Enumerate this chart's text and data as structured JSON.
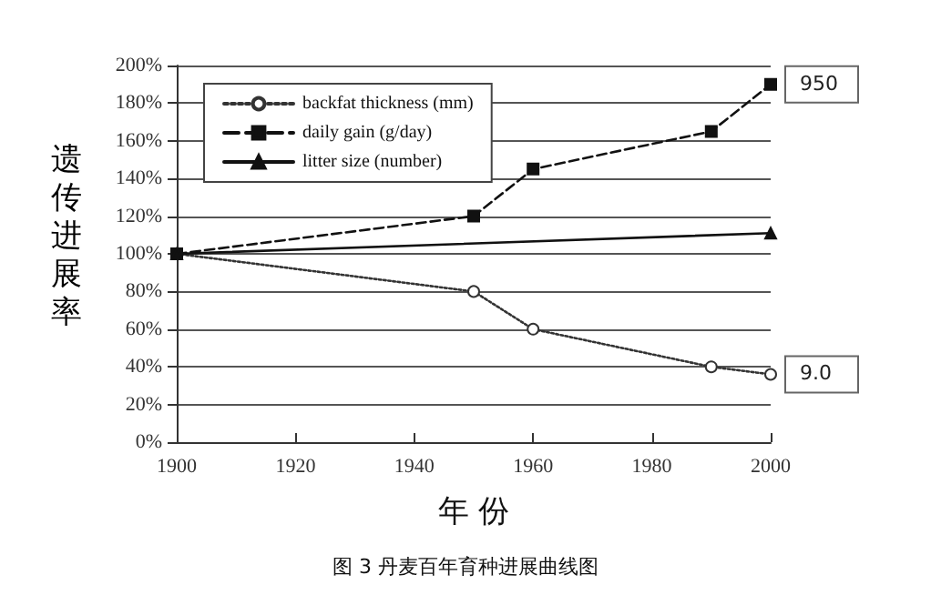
{
  "chart_data": {
    "type": "line",
    "xlabel": "年 份",
    "ylabel": "遗传进展率",
    "series": [
      {
        "name": "backfat thickness (mm)",
        "color": "#333333",
        "x": [
          1900,
          1950,
          1960,
          1990,
          2000
        ],
        "values": [
          100,
          80,
          60,
          40,
          36
        ],
        "marker": "circle",
        "line_style": "dotted"
      },
      {
        "name": "daily gain (g/day)",
        "color": "#111111",
        "x": [
          1900,
          1950,
          1960,
          1990,
          2000
        ],
        "values": [
          100,
          120,
          145,
          165,
          190
        ],
        "marker": "square",
        "line_style": "dashed"
      },
      {
        "name": "litter size (number)",
        "color": "#111111",
        "x": [
          1900,
          2000
        ],
        "values": [
          100,
          111
        ],
        "marker": "triangle",
        "line_style": "solid"
      }
    ],
    "xlim": [
      1900,
      2000
    ],
    "xticks": [
      1900,
      1920,
      1940,
      1960,
      1980,
      2000
    ],
    "ylim": [
      0,
      200
    ],
    "yticks": [
      {
        "value": 0,
        "label": "0%"
      },
      {
        "value": 20,
        "label": "20%"
      },
      {
        "value": 40,
        "label": "40%"
      },
      {
        "value": 60,
        "label": "60%"
      },
      {
        "value": 80,
        "label": "80%"
      },
      {
        "value": 100,
        "label": "100%"
      },
      {
        "value": 120,
        "label": "120%"
      },
      {
        "value": 140,
        "label": "140%"
      },
      {
        "value": 160,
        "label": "160%"
      },
      {
        "value": 180,
        "label": "180%"
      },
      {
        "value": 200,
        "label": "200%"
      }
    ],
    "grid": "y",
    "legend": "top left",
    "annotations": [
      {
        "text": "950",
        "x": 2000,
        "y": 190
      },
      {
        "text": "9.0",
        "x": 2000,
        "y": 36
      },
      "图 3 丹麦百年育种进展曲线图"
    ]
  }
}
